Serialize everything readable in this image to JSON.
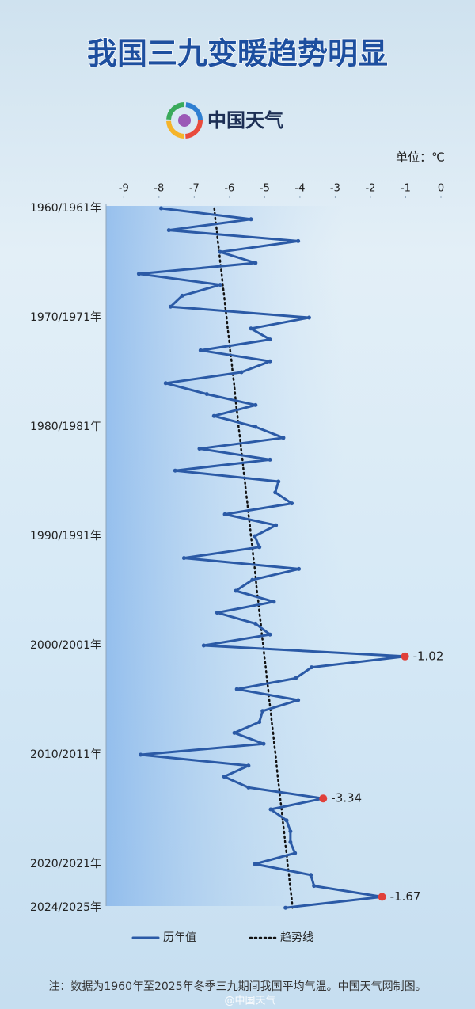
{
  "title": "我国三九变暖趋势明显",
  "logo": "中国天气",
  "note": "注：数据为1960年至2025年冬季三九期间我国平均气温。中国天气网制图。",
  "watermark": "@中国天气",
  "chart_data": {
    "type": "line",
    "x_label": "单位：℃",
    "xlim": [
      -9.5,
      0
    ],
    "xticks": [
      -9,
      -8,
      -7,
      -6,
      -5,
      -4,
      -3,
      -2,
      -1,
      0
    ],
    "categories": [
      "1960/1961年",
      null,
      null,
      null,
      null,
      null,
      null,
      null,
      null,
      null,
      "1970/1971年",
      null,
      null,
      null,
      null,
      null,
      null,
      null,
      null,
      null,
      "1980/1981年",
      null,
      null,
      null,
      null,
      null,
      null,
      null,
      null,
      null,
      "1990/1991年",
      null,
      null,
      null,
      null,
      null,
      null,
      null,
      null,
      null,
      "2000/2001年",
      null,
      null,
      null,
      null,
      null,
      null,
      null,
      null,
      null,
      "2010/2011年",
      null,
      null,
      null,
      null,
      null,
      null,
      null,
      null,
      null,
      "2020/2021年",
      null,
      null,
      null,
      "2024/2025年"
    ],
    "series": [
      {
        "name": "历年值",
        "color": "#2b5aa6",
        "style": "solid",
        "values": [
          -7.94,
          -5.39,
          -7.72,
          -4.05,
          -6.26,
          -5.26,
          -8.57,
          -6.26,
          -7.34,
          -7.67,
          -3.74,
          -5.39,
          -4.85,
          -6.82,
          -4.85,
          -5.66,
          -7.81,
          -6.64,
          -5.26,
          -6.44,
          -5.26,
          -4.47,
          -6.85,
          -4.85,
          -7.54,
          -4.61,
          -4.7,
          -4.23,
          -6.13,
          -4.68,
          -5.28,
          -5.15,
          -7.29,
          -4.03,
          -5.35,
          -5.82,
          -4.74,
          -6.35,
          -5.26,
          -4.85,
          -6.73,
          -1.02,
          -3.67,
          -4.12,
          -5.79,
          -4.05,
          -5.06,
          -5.15,
          -5.86,
          -5.03,
          -8.52,
          -5.46,
          -6.15,
          -5.46,
          -3.34,
          -4.83,
          -4.38,
          -4.27,
          -4.27,
          -4.14,
          -5.28,
          -3.69,
          -3.6,
          -1.67,
          -4.41
        ],
        "value_labels": [
          null,
          null,
          null,
          null,
          null,
          null,
          null,
          null,
          null,
          null,
          null,
          null,
          null,
          null,
          null,
          null,
          null,
          null,
          null,
          null,
          null,
          null,
          null,
          null,
          null,
          null,
          null,
          null,
          null,
          null,
          null,
          null,
          null,
          null,
          null,
          null,
          null,
          null,
          null,
          null,
          null,
          "-1.02",
          null,
          null,
          null,
          null,
          null,
          null,
          null,
          null,
          null,
          null,
          null,
          null,
          "-3.34",
          null,
          null,
          null,
          null,
          null,
          null,
          null,
          null,
          "-1.67",
          null
        ],
        "highlight_color": "#e0403a"
      },
      {
        "name": "趋势线",
        "color": "#111111",
        "style": "dotted",
        "values": [
          -6.43,
          -6.4,
          -6.36,
          -6.33,
          -6.29,
          -6.26,
          -6.22,
          -6.19,
          -6.15,
          -6.12,
          -6.08,
          -6.05,
          -6.01,
          -5.98,
          -5.94,
          -5.91,
          -5.87,
          -5.84,
          -5.81,
          -5.77,
          -5.74,
          -5.7,
          -5.67,
          -5.63,
          -5.6,
          -5.56,
          -5.53,
          -5.49,
          -5.46,
          -5.42,
          -5.39,
          -5.35,
          -5.32,
          -5.28,
          -5.25,
          -5.22,
          -5.18,
          -5.15,
          -5.11,
          -5.08,
          -5.04,
          -5.01,
          -4.97,
          -4.94,
          -4.9,
          -4.87,
          -4.83,
          -4.8,
          -4.76,
          -4.73,
          -4.69,
          -4.66,
          -4.63,
          -4.59,
          -4.56,
          -4.52,
          -4.49,
          -4.45,
          -4.42,
          -4.38,
          -4.35,
          -4.31,
          -4.28,
          -4.24,
          -4.21
        ]
      }
    ],
    "legend": "bottom"
  }
}
